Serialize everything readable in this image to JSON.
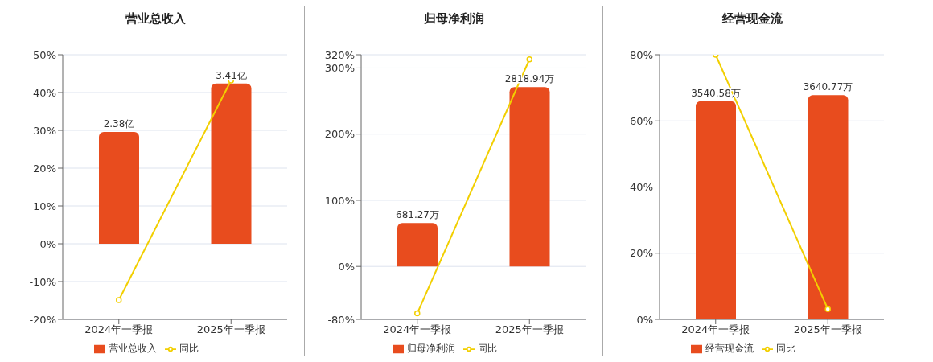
{
  "chart_data": [
    {
      "type": "bar",
      "title": "营业总收入",
      "categories": [
        "2024年一季报",
        "2025年一季报"
      ],
      "series": [
        {
          "name": "营业总收入",
          "color": "#e84c1e",
          "values": [
            2.38,
            3.41
          ],
          "value_labels": [
            "2.38亿",
            "3.41亿"
          ],
          "axis": "y2"
        },
        {
          "name": "同比",
          "type": "line",
          "color": "#f2cf00",
          "values": [
            -14.9,
            43.2
          ]
        }
      ],
      "ylim": [
        -20,
        50
      ],
      "yticks": [
        {
          "value": -20,
          "label": "-20%"
        },
        {
          "value": -10,
          "label": "-10%"
        },
        {
          "value": 0,
          "label": "0%"
        },
        {
          "value": 10,
          "label": "10%"
        },
        {
          "value": 20,
          "label": "20%"
        },
        {
          "value": 30,
          "label": "30%"
        },
        {
          "value": 40,
          "label": "40%"
        },
        {
          "value": 50,
          "label": "50%"
        }
      ],
      "grid": "y",
      "legend": "bottom",
      "marker": "circle"
    },
    {
      "type": "bar",
      "title": "归母净利润",
      "categories": [
        "2024年一季报",
        "2025年一季报"
      ],
      "series": [
        {
          "name": "归母净利润",
          "color": "#e84c1e",
          "values": [
            681.27,
            2818.94
          ],
          "value_labels": [
            "681.27万",
            "2818.94万"
          ],
          "axis": "y2"
        },
        {
          "name": "同比",
          "type": "line",
          "color": "#f2cf00",
          "values": [
            -71,
            313
          ]
        }
      ],
      "ylim": [
        -80,
        320
      ],
      "yticks": [
        {
          "value": -80,
          "label": "-80%"
        },
        {
          "value": 0,
          "label": "0%"
        },
        {
          "value": 100,
          "label": "100%"
        },
        {
          "value": 200,
          "label": "200%"
        },
        {
          "value": 300,
          "label": "300%"
        },
        {
          "value": 320,
          "label": "320%"
        }
      ],
      "grid": "y",
      "legend": "bottom",
      "marker": "circle"
    },
    {
      "type": "bar",
      "title": "经营现金流",
      "categories": [
        "2024年一季报",
        "2025年一季报"
      ],
      "series": [
        {
          "name": "经营现金流",
          "color": "#e84c1e",
          "values": [
            3540.58,
            3640.77
          ],
          "value_labels": [
            "3540.58万",
            "3640.77万"
          ],
          "axis": "y2"
        },
        {
          "name": "同比",
          "type": "line",
          "color": "#f2cf00",
          "values": [
            80,
            3.1
          ]
        }
      ],
      "ylim": [
        0,
        80
      ],
      "yticks": [
        {
          "value": 0,
          "label": "0%"
        },
        {
          "value": 20,
          "label": "20%"
        },
        {
          "value": 40,
          "label": "40%"
        },
        {
          "value": 60,
          "label": "60%"
        },
        {
          "value": 80,
          "label": "80%"
        }
      ],
      "grid": "y",
      "legend": "bottom",
      "marker": "circle"
    }
  ]
}
